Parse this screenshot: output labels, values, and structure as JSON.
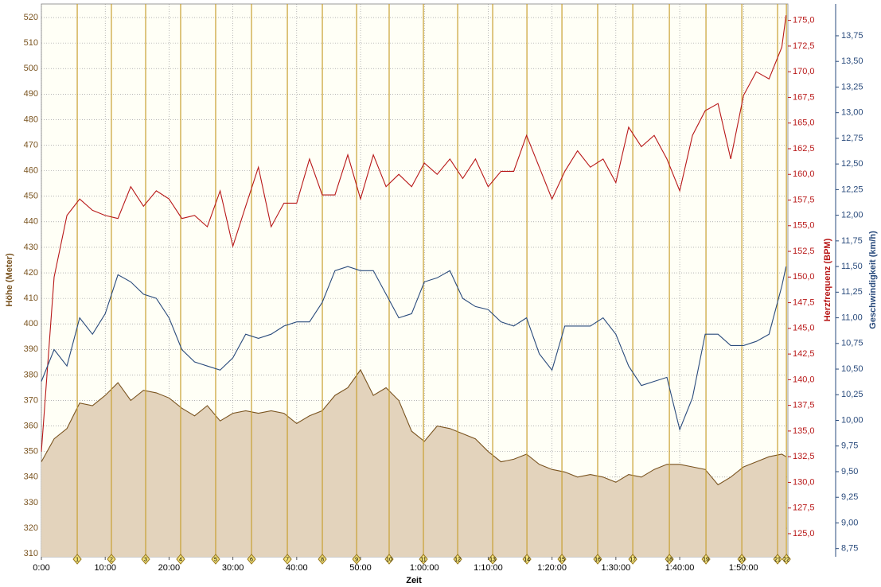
{
  "chart_data": {
    "type": "line",
    "xlabel": "Zeit",
    "ylabel": "Höhe (Meter)",
    "y2label": "Herzfrequenz (BPM)",
    "y3label": "Geschwindigkeit (km/h)",
    "x": [
      0,
      120,
      240,
      360,
      480,
      600,
      720,
      840,
      960,
      1080,
      1200,
      1320,
      1440,
      1560,
      1680,
      1800,
      1920,
      2040,
      2160,
      2280,
      2400,
      2520,
      2640,
      2760,
      2880,
      3000,
      3120,
      3240,
      3360,
      3480,
      3600,
      3720,
      3840,
      3960,
      4080,
      4200,
      4320,
      4440,
      4560,
      4680,
      4800,
      4920,
      5040,
      5160,
      5280,
      5400,
      5520,
      5640,
      5760,
      5880,
      6000,
      6120,
      6240,
      6360,
      6480,
      6600,
      6720,
      6840,
      6960,
      7000
    ],
    "xlim": [
      0,
      7017
    ],
    "xticks": [
      {
        "value": 0,
        "label": "0:00"
      },
      {
        "value": 600,
        "label": "10:00"
      },
      {
        "value": 1200,
        "label": "20:00"
      },
      {
        "value": 1800,
        "label": "30:00"
      },
      {
        "value": 2400,
        "label": "40:00"
      },
      {
        "value": 3000,
        "label": "50:00"
      },
      {
        "value": 3600,
        "label": "1:00:00"
      },
      {
        "value": 4200,
        "label": "1:10:00"
      },
      {
        "value": 4800,
        "label": "1:20:00"
      },
      {
        "value": 5400,
        "label": "1:30:00"
      },
      {
        "value": 6000,
        "label": "1:40:00"
      },
      {
        "value": 6600,
        "label": "1:50:00"
      }
    ],
    "ylim": [
      308.8,
      525.3
    ],
    "yticks": [
      310,
      320,
      330,
      340,
      350,
      360,
      370,
      380,
      390,
      400,
      410,
      420,
      430,
      440,
      450,
      460,
      470,
      480,
      490,
      500,
      510,
      520
    ],
    "y2lim": [
      122.75,
      176.6
    ],
    "y2ticks": [
      {
        "value": 125,
        "label": "125,0"
      },
      {
        "value": 127.5,
        "label": "127,5"
      },
      {
        "value": 130,
        "label": "130,0"
      },
      {
        "value": 132.5,
        "label": "132,5"
      },
      {
        "value": 135,
        "label": "135,0"
      },
      {
        "value": 137.5,
        "label": "137,5"
      },
      {
        "value": 140,
        "label": "140,0"
      },
      {
        "value": 142.5,
        "label": "142,5"
      },
      {
        "value": 145,
        "label": "145,0"
      },
      {
        "value": 147.5,
        "label": "147,5"
      },
      {
        "value": 150,
        "label": "150,0"
      },
      {
        "value": 152.5,
        "label": "152,5"
      },
      {
        "value": 155,
        "label": "155,0"
      },
      {
        "value": 157.5,
        "label": "157,5"
      },
      {
        "value": 160,
        "label": "160,0"
      },
      {
        "value": 162.5,
        "label": "162,5"
      },
      {
        "value": 165,
        "label": "165,0"
      },
      {
        "value": 167.5,
        "label": "167,5"
      },
      {
        "value": 170,
        "label": "170,0"
      },
      {
        "value": 172.5,
        "label": "172,5"
      },
      {
        "value": 175,
        "label": "175,0"
      }
    ],
    "y3lim": [
      8.67,
      14.06
    ],
    "y3ticks": [
      {
        "value": 8.75,
        "label": "8,75"
      },
      {
        "value": 9,
        "label": "9,00"
      },
      {
        "value": 9.25,
        "label": "9,25"
      },
      {
        "value": 9.5,
        "label": "9,50"
      },
      {
        "value": 9.75,
        "label": "9,75"
      },
      {
        "value": 10,
        "label": "10,00"
      },
      {
        "value": 10.25,
        "label": "10,25"
      },
      {
        "value": 10.5,
        "label": "10,50"
      },
      {
        "value": 10.75,
        "label": "10,75"
      },
      {
        "value": 11,
        "label": "11,00"
      },
      {
        "value": 11.25,
        "label": "11,25"
      },
      {
        "value": 11.5,
        "label": "11,50"
      },
      {
        "value": 11.75,
        "label": "11,75"
      },
      {
        "value": 12,
        "label": "12,00"
      },
      {
        "value": 12.25,
        "label": "12,25"
      },
      {
        "value": 12.5,
        "label": "12,50"
      },
      {
        "value": 12.75,
        "label": "12,75"
      },
      {
        "value": 13,
        "label": "13,00"
      },
      {
        "value": 13.25,
        "label": "13,25"
      },
      {
        "value": 13.5,
        "label": "13,50"
      },
      {
        "value": 13.75,
        "label": "13,75"
      }
    ],
    "grid": true,
    "series": [
      {
        "name": "Höhe",
        "axis": "y",
        "area": true,
        "color": "#7a5420",
        "fill": "#e3d3bc",
        "values": [
          346,
          355,
          359,
          369,
          368,
          372,
          377,
          370,
          374,
          373,
          371,
          367,
          364,
          368,
          362,
          365,
          366,
          365,
          366,
          365,
          361,
          364,
          366,
          372,
          375,
          382,
          372,
          375,
          370,
          358,
          354,
          360,
          359,
          357,
          355,
          350,
          346,
          347,
          349,
          345,
          343,
          342,
          340,
          341,
          340,
          338,
          341,
          340,
          343,
          345,
          345,
          344,
          343,
          337,
          340,
          344,
          346,
          348,
          349,
          348
        ]
      },
      {
        "name": "Herzfrequenz",
        "axis": "y2",
        "color": "#b81818",
        "values": [
          133,
          150,
          156,
          157.6,
          156.5,
          156,
          155.7,
          158.8,
          156.9,
          158.4,
          157.6,
          155.7,
          156,
          154.9,
          158.4,
          153,
          156.9,
          160.7,
          154.9,
          157.2,
          157.2,
          161.5,
          158,
          158,
          161.9,
          157.6,
          161.9,
          158.8,
          160,
          158.8,
          161.1,
          160,
          161.5,
          159.6,
          161.5,
          158.8,
          160.3,
          160.3,
          163.8,
          160.7,
          157.6,
          160.3,
          162.3,
          160.7,
          161.5,
          159.2,
          164.6,
          162.7,
          163.8,
          161.5,
          158.4,
          163.8,
          166.2,
          166.9,
          161.5,
          167.7,
          170,
          169.3,
          172.4,
          175.5
        ]
      },
      {
        "name": "Geschwindigkeit",
        "axis": "y3",
        "color": "#2a4b7c",
        "values": [
          10.38,
          10.69,
          10.53,
          11.0,
          10.84,
          11.04,
          11.42,
          11.35,
          11.23,
          11.19,
          11.0,
          10.69,
          10.57,
          10.53,
          10.49,
          10.61,
          10.84,
          10.8,
          10.84,
          10.92,
          10.96,
          10.96,
          11.15,
          11.46,
          11.5,
          11.46,
          11.46,
          11.23,
          11.0,
          11.04,
          11.35,
          11.39,
          11.46,
          11.19,
          11.11,
          11.08,
          10.96,
          10.92,
          11.0,
          10.65,
          10.49,
          10.92,
          10.92,
          10.92,
          11.0,
          10.84,
          10.53,
          10.34,
          10.38,
          10.42,
          9.91,
          10.22,
          10.84,
          10.84,
          10.73,
          10.73,
          10.77,
          10.84,
          11.31,
          11.5
        ]
      }
    ],
    "laps": {
      "color": "#c8a032",
      "x": [
        337,
        658,
        980,
        1309,
        1638,
        1975,
        2312,
        2641,
        2963,
        3269,
        3591,
        3913,
        4242,
        4564,
        4893,
        5229,
        5559,
        5903,
        6247,
        6584,
        6920,
        7003
      ],
      "labels": [
        "1",
        "2",
        "3",
        "4",
        "5",
        "6",
        "7",
        "8",
        "9",
        "10",
        "11",
        "12",
        "13",
        "14",
        "15",
        "16",
        "17",
        "18",
        "19",
        "20",
        "21",
        "22"
      ]
    }
  }
}
